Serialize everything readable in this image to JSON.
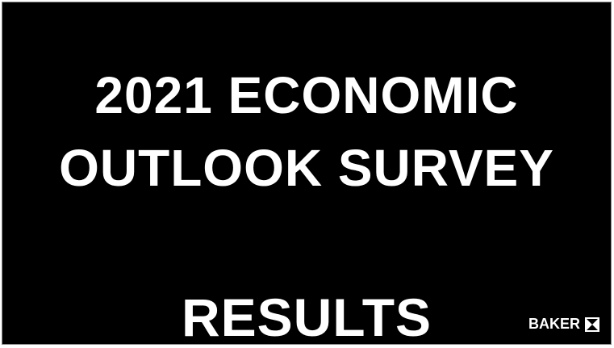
{
  "slide": {
    "title_lines": [
      "2021 ECONOMIC",
      "OUTLOOK SURVEY"
    ],
    "subtitle": "RESULTS",
    "brand": "BAKER"
  }
}
